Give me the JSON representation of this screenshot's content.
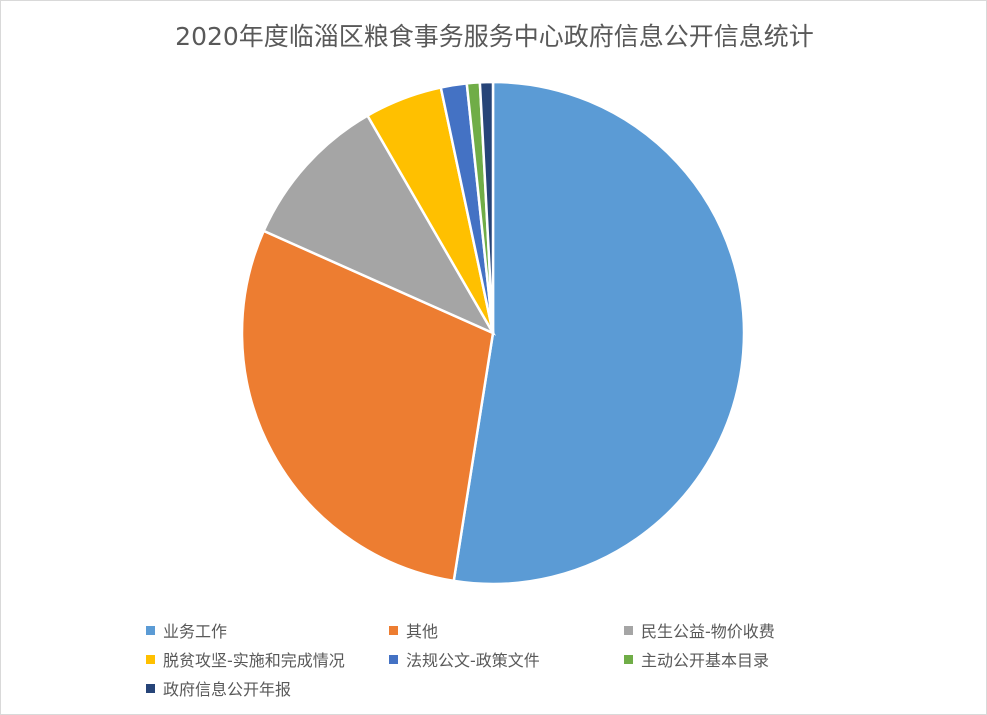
{
  "chart_data": {
    "type": "pie",
    "title": "2020年度临淄区粮食事务服务中心政府信息公开信息统计",
    "start_angle": "12 o'clock, clockwise",
    "legend_position": "bottom",
    "slices": [
      {
        "label": "业务工作",
        "value": 63,
        "color": "#5B9BD5"
      },
      {
        "label": "其他",
        "value": 35,
        "color": "#ED7D31"
      },
      {
        "label": "民生公益-物价收费",
        "value": 12,
        "color": "#A5A5A5"
      },
      {
        "label": "脱贫攻坚-实施和完成情况",
        "value": 6,
        "color": "#FFC000"
      },
      {
        "label": "法规公文-政策文件",
        "value": 2,
        "color": "#4472C4"
      },
      {
        "label": "主动公开基本目录",
        "value": 1,
        "color": "#70AD47"
      },
      {
        "label": "政府信息公开年报",
        "value": 1,
        "color": "#264478"
      }
    ]
  }
}
